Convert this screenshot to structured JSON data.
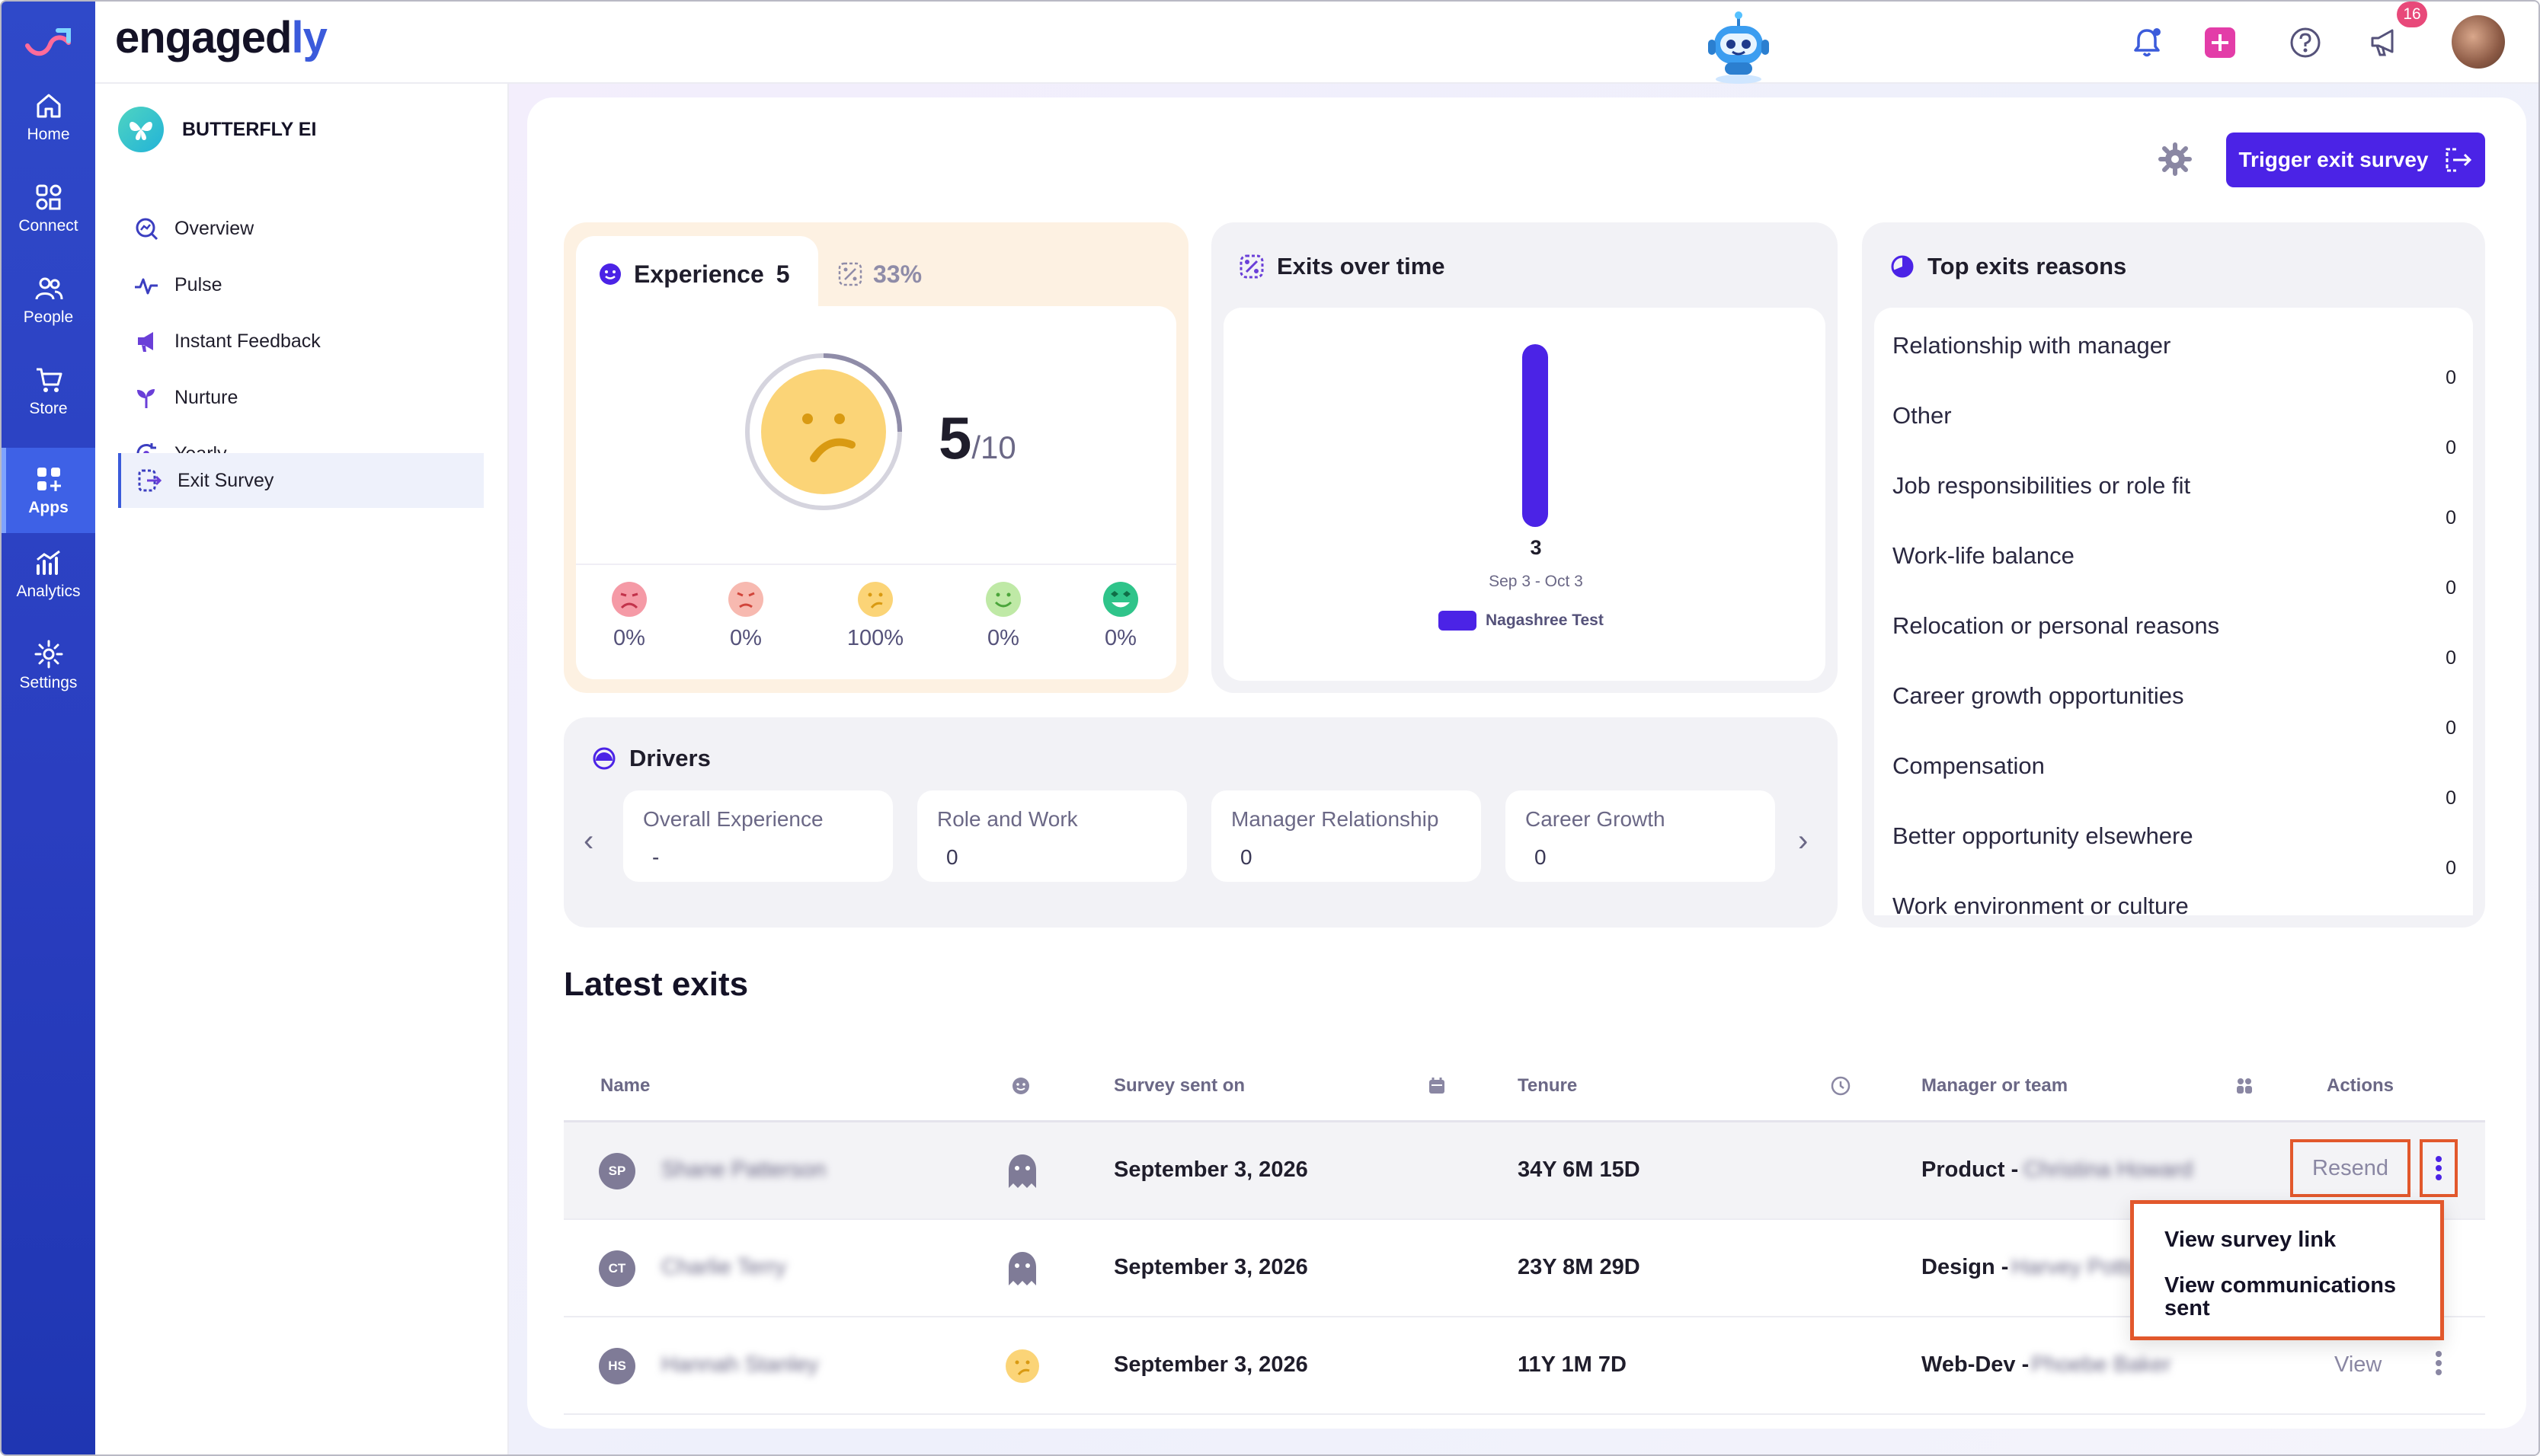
{
  "app": {
    "brand_main": "engaged",
    "brand_accent": "ly",
    "notifications_count": "16"
  },
  "colors": {
    "rail": "#2a3ec0",
    "primary": "#4b23e6",
    "highlight": "#e2582c",
    "experience_bg": "#fdf1e2"
  },
  "rail": {
    "items": [
      {
        "label": "Home",
        "icon": "home-icon"
      },
      {
        "label": "Connect",
        "icon": "connect-icon"
      },
      {
        "label": "People",
        "icon": "people-icon"
      },
      {
        "label": "Store",
        "icon": "cart-icon"
      },
      {
        "label": "Apps",
        "icon": "apps-icon",
        "active": true
      },
      {
        "label": "Analytics",
        "icon": "analytics-icon"
      },
      {
        "label": "Settings",
        "icon": "gear-icon"
      }
    ]
  },
  "subnav": {
    "app_name": "BUTTERFLY EI",
    "items": [
      {
        "label": "Overview",
        "icon": "overview-icon"
      },
      {
        "label": "Pulse",
        "icon": "pulse-icon"
      },
      {
        "label": "Instant Feedback",
        "icon": "feedback-icon"
      },
      {
        "label": "Nurture",
        "icon": "nurture-icon"
      },
      {
        "label": "Yearly",
        "icon": "yearly-icon"
      },
      {
        "label": "Exit Survey",
        "icon": "exit-survey-icon",
        "active": true
      }
    ]
  },
  "toolbar": {
    "trigger_label": "Trigger exit survey"
  },
  "experience": {
    "title": "Experience",
    "count": "5",
    "percent": "33%",
    "score": "5",
    "score_den": "/10",
    "distribution": [
      {
        "icon": "very-sad-face-icon",
        "value": "0%"
      },
      {
        "icon": "sad-face-icon",
        "value": "0%"
      },
      {
        "icon": "neutral-face-icon",
        "value": "100%"
      },
      {
        "icon": "happy-face-icon",
        "value": "0%"
      },
      {
        "icon": "very-happy-face-icon",
        "value": "0%"
      }
    ]
  },
  "exits_over_time": {
    "title": "Exits over time"
  },
  "chart_data": {
    "type": "bar",
    "title": "Exits over time",
    "categories": [
      "Sep 3 - Oct 3"
    ],
    "series": [
      {
        "name": "Nagashree Test",
        "values": [
          3
        ]
      }
    ],
    "value_labels": [
      "3"
    ]
  },
  "top_reasons": {
    "title": "Top exits reasons",
    "items": [
      {
        "label": "Relationship with manager",
        "count": "0"
      },
      {
        "label": "Other",
        "count": "0"
      },
      {
        "label": "Job responsibilities or role fit",
        "count": "0"
      },
      {
        "label": "Work-life balance",
        "count": "0"
      },
      {
        "label": "Relocation or personal reasons",
        "count": "0"
      },
      {
        "label": "Career growth opportunities",
        "count": "0"
      },
      {
        "label": "Compensation",
        "count": "0"
      },
      {
        "label": "Better opportunity elsewhere",
        "count": "0"
      },
      {
        "label": "Work environment or culture",
        "count": ""
      }
    ]
  },
  "drivers": {
    "title": "Drivers",
    "items": [
      {
        "label": "Overall Experience",
        "value": "-"
      },
      {
        "label": "Role and Work",
        "value": "0"
      },
      {
        "label": "Manager Relationship",
        "value": "0"
      },
      {
        "label": "Career Growth",
        "value": "0"
      }
    ]
  },
  "latest": {
    "title": "Latest exits",
    "columns": {
      "name": "Name",
      "sent": "Survey sent on",
      "tenure": "Tenure",
      "manager": "Manager or team",
      "actions": "Actions"
    },
    "rows": [
      {
        "initials": "SP",
        "name": "Shane Patterson",
        "mood": "ghost-icon",
        "sent": "September 3, 2026",
        "tenure": "34Y 6M 15D",
        "team": "Product -",
        "manager": "Christina Howard",
        "action": "Resend"
      },
      {
        "initials": "CT",
        "name": "Charlie Terry",
        "mood": "ghost-icon",
        "sent": "September 3, 2026",
        "tenure": "23Y 8M 29D",
        "team": "Design -",
        "manager": "Harvey Potts",
        "action": ""
      },
      {
        "initials": "HS",
        "name": "Hannah Stanley",
        "mood": "neutral-face-icon",
        "sent": "September 3, 2026",
        "tenure": "11Y 1M 7D",
        "team": "Web-Dev -",
        "manager": "Phoebe Baker",
        "action": "View"
      }
    ]
  },
  "menu": {
    "items": [
      "View survey link",
      "View communications sent"
    ]
  }
}
